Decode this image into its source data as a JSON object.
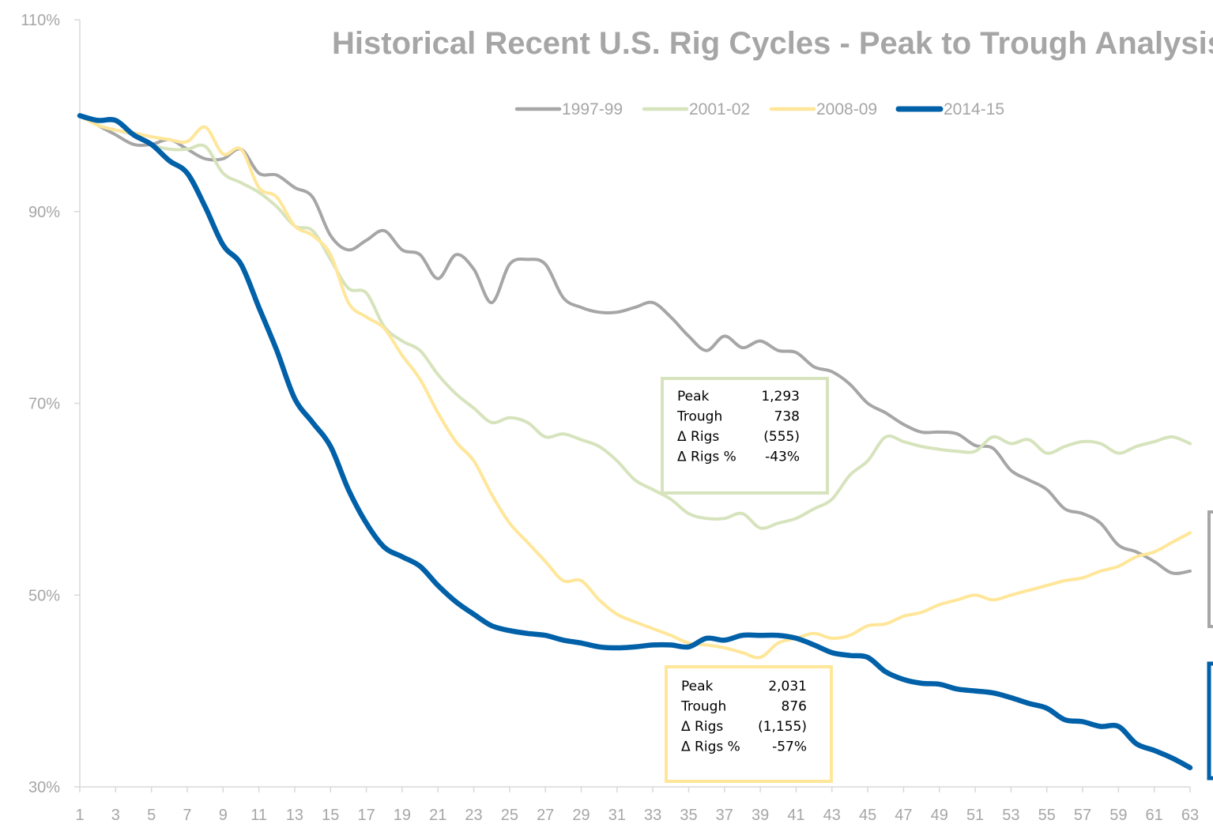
{
  "chart_data": {
    "type": "line",
    "title": "Historical Recent U.S. Rig Cycles - Peak to Trough Analysis",
    "xlabel": "",
    "ylabel": "",
    "x_range": [
      1,
      63
    ],
    "ylim": [
      30,
      110
    ],
    "y_ticks": [
      "30%",
      "50%",
      "70%",
      "90%",
      "110%"
    ],
    "x_ticks": [
      1,
      3,
      5,
      7,
      9,
      11,
      13,
      15,
      17,
      19,
      21,
      23,
      25,
      27,
      29,
      31,
      33,
      35,
      37,
      39,
      41,
      43,
      45,
      47,
      49,
      51,
      53,
      55,
      57,
      59,
      61,
      63
    ],
    "legend": {
      "placement": "top-center"
    },
    "grid": false,
    "x": [
      1,
      2,
      3,
      4,
      5,
      6,
      7,
      8,
      9,
      10,
      11,
      12,
      13,
      14,
      15,
      16,
      17,
      18,
      19,
      20,
      21,
      22,
      23,
      24,
      25,
      26,
      27,
      28,
      29,
      30,
      31,
      32,
      33,
      34,
      35,
      36,
      37,
      38,
      39,
      40,
      41,
      42,
      43,
      44,
      45,
      46,
      47,
      48,
      49,
      50,
      51,
      52,
      53,
      54,
      55,
      56,
      57,
      58,
      59,
      60,
      61,
      62,
      63
    ],
    "series": [
      {
        "name": "1997-99",
        "color": "#a6a6a6",
        "values": [
          100,
          99,
          98,
          97,
          97,
          97.5,
          96.5,
          95.5,
          95.5,
          96.5,
          94,
          93.8,
          92.5,
          91.5,
          87.5,
          86,
          87,
          88,
          86,
          85.5,
          83,
          85.5,
          84,
          80.5,
          84.5,
          85,
          84.5,
          81,
          80,
          79.5,
          79.5,
          80,
          80.5,
          79,
          77,
          75.5,
          77,
          75.8,
          76.5,
          75.5,
          75.3,
          73.8,
          73.3,
          72,
          70,
          69,
          67.8,
          67,
          67,
          66.8,
          65.6,
          65.3,
          63,
          62,
          61,
          59,
          58.5,
          57.5,
          55.2,
          54.5,
          53.5,
          52.3,
          52.5
        ]
      },
      {
        "name": "2001-02",
        "color": "#d6e3bc",
        "values": [
          100,
          99,
          98.5,
          98,
          97,
          96.5,
          96.5,
          96.8,
          94,
          93,
          92,
          90.5,
          88.5,
          88,
          85,
          82,
          81.5,
          78,
          76.5,
          75.5,
          73,
          71,
          69.5,
          68,
          68.5,
          68,
          66.5,
          66.8,
          66.2,
          65.5,
          64,
          62,
          61,
          60,
          58.5,
          58,
          58,
          58.5,
          57,
          57.5,
          58,
          59,
          60,
          62.5,
          64,
          66.5,
          66,
          65.5,
          65.2,
          65,
          65,
          66.5,
          65.8,
          66.2,
          64.8,
          65.5,
          66,
          65.8,
          64.8,
          65.5,
          66,
          66.5,
          65.8
        ]
      },
      {
        "name": "2008-09",
        "color": "#ffe699",
        "values": [
          100,
          99,
          98.5,
          98.2,
          97.8,
          97.5,
          97.3,
          98.8,
          96,
          96.5,
          92.5,
          91.5,
          88.5,
          87.5,
          85.5,
          80.5,
          79,
          77.8,
          75,
          72.5,
          69,
          66,
          64,
          60.5,
          57.5,
          55.5,
          53.5,
          51.5,
          51.5,
          49.5,
          48,
          47.2,
          46.5,
          45.8,
          45,
          44.8,
          44.5,
          44,
          43.5,
          45,
          45.5,
          46,
          45.5,
          45.8,
          46.8,
          47,
          47.8,
          48.2,
          49,
          49.5,
          50,
          49.5,
          50,
          50.5,
          51,
          51.5,
          51.8,
          52.5,
          53,
          54,
          54.5,
          55.5,
          56.5
        ]
      },
      {
        "name": "2014-15",
        "color": "#0060a8",
        "values": [
          100,
          99.5,
          99.5,
          98,
          97,
          95.3,
          94,
          90.5,
          86.5,
          84.5,
          80,
          75.5,
          70.5,
          68,
          65.5,
          61,
          57.5,
          55,
          54,
          53,
          51,
          49.3,
          48,
          46.8,
          46.3,
          46,
          45.8,
          45.3,
          45,
          44.6,
          44.5,
          44.6,
          44.8,
          44.8,
          44.6,
          45.5,
          45.3,
          45.8,
          45.8,
          45.8,
          45.5,
          44.8,
          44,
          43.7,
          43.5,
          42,
          41.2,
          40.8,
          40.7,
          40.2,
          40,
          39.8,
          39.3,
          38.7,
          38.2,
          37,
          36.8,
          36.3,
          36.3,
          34.5,
          33.8,
          33,
          32
        ]
      }
    ],
    "annotations": [
      {
        "id": "box-2001",
        "border": "#d6e3bc",
        "rows": [
          {
            "label": "Peak",
            "value": "1,293"
          },
          {
            "label": "Trough",
            "value": "738"
          },
          {
            "label": "Δ Rigs",
            "value": "(555)"
          },
          {
            "label": "Δ Rigs %",
            "value": "-43%"
          }
        ]
      },
      {
        "id": "box-2008",
        "border": "#ffe699",
        "rows": [
          {
            "label": "Peak",
            "value": "2,031"
          },
          {
            "label": "Trough",
            "value": "876"
          },
          {
            "label": "Δ Rigs",
            "value": "(1,155)"
          },
          {
            "label": "Δ Rigs %",
            "value": "-57%"
          }
        ]
      }
    ]
  }
}
